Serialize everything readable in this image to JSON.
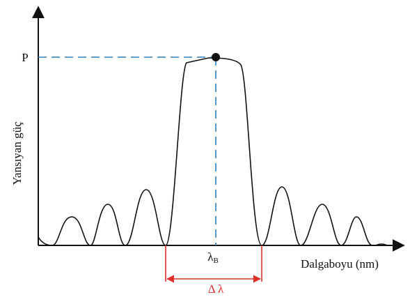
{
  "y_axis_label": "Yansıyan güç",
  "x_axis_label": "Dalgaboyu (nm)",
  "peak_label": "P",
  "center_label": {
    "symbol": "λ",
    "subscript": "B"
  },
  "width_label": "Δ λ"
}
